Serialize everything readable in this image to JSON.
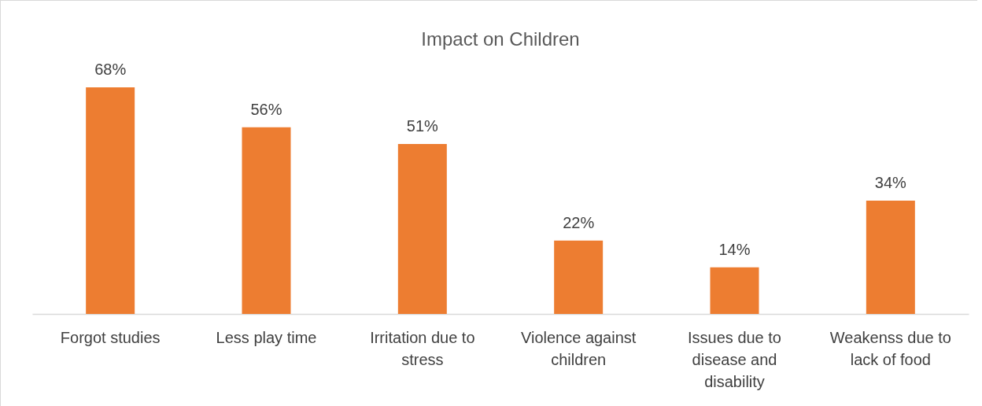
{
  "chart_data": {
    "type": "bar",
    "title": "Impact on Children",
    "categories": [
      "Forgot studies",
      "Less play time",
      "Irritation due to stress",
      "Violence against children",
      "Issues due to disease and disability",
      "Weakenss due to lack of food"
    ],
    "values": [
      68,
      56,
      51,
      22,
      14,
      34
    ],
    "value_labels": [
      "68%",
      "56%",
      "51%",
      "22%",
      "14%",
      "34%"
    ],
    "color": "#ed7d31"
  }
}
